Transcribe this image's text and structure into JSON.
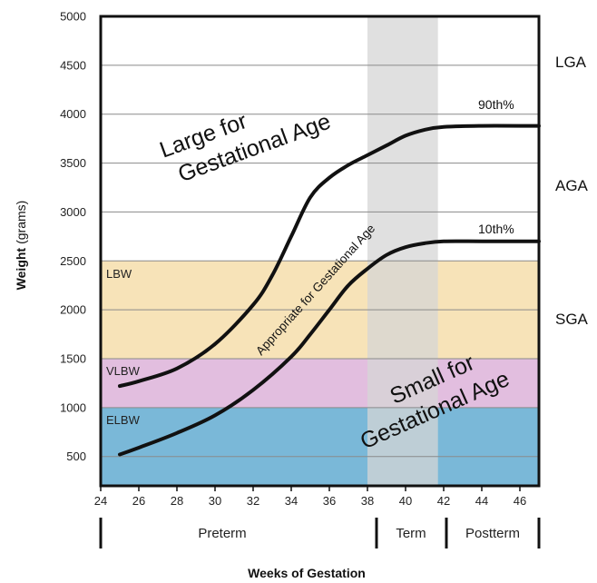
{
  "chart_data": {
    "type": "line",
    "xlabel": "Weeks of Gestation",
    "ylabel_bold": "Weight",
    "ylabel_unit": "(grams)",
    "xlim": [
      24,
      47
    ],
    "ylim": [
      200,
      5000
    ],
    "x_ticks": [
      24,
      26,
      28,
      30,
      32,
      34,
      36,
      38,
      40,
      42,
      44,
      46
    ],
    "y_ticks": [
      500,
      1000,
      1500,
      2000,
      2500,
      3000,
      3500,
      4000,
      4500,
      5000
    ],
    "weight_bands": [
      {
        "label": "ELBW",
        "from": 200,
        "to": 1000,
        "color": "#7ab8d8"
      },
      {
        "label": "VLBW",
        "from": 1000,
        "to": 1500,
        "color": "#e2bedf"
      },
      {
        "label": "LBW",
        "from": 1500,
        "to": 2500,
        "color": "#f7e3b8"
      }
    ],
    "term_band": {
      "label": "Term",
      "from": 38,
      "to": 41.7,
      "color": "#d6d6d6"
    },
    "series": [
      {
        "name": "90th%",
        "x": [
          25,
          26,
          28,
          30,
          32,
          33,
          34,
          35,
          36,
          37,
          38,
          39,
          40,
          41,
          42,
          44,
          46,
          47
        ],
        "values": [
          1220,
          1270,
          1400,
          1650,
          2050,
          2350,
          2750,
          3150,
          3350,
          3480,
          3580,
          3680,
          3780,
          3840,
          3870,
          3880,
          3880,
          3880
        ]
      },
      {
        "name": "10th%",
        "x": [
          25,
          26,
          28,
          30,
          32,
          34,
          35,
          36,
          37,
          38,
          39,
          40,
          41,
          42,
          44,
          46,
          47
        ],
        "values": [
          520,
          590,
          740,
          920,
          1180,
          1520,
          1750,
          2000,
          2250,
          2420,
          2560,
          2640,
          2680,
          2700,
          2700,
          2700,
          2700
        ]
      }
    ],
    "classification_labels": [
      "LGA",
      "AGA",
      "SGA"
    ],
    "region_labels": {
      "large": [
        "Large for",
        "Gestational Age"
      ],
      "appropriate": "Appropriate for Gestational Age",
      "small": [
        "Small for",
        "Gestational Age"
      ]
    },
    "periods": [
      "Preterm",
      "Term",
      "Postterm"
    ],
    "grid": true,
    "legend": "none"
  }
}
